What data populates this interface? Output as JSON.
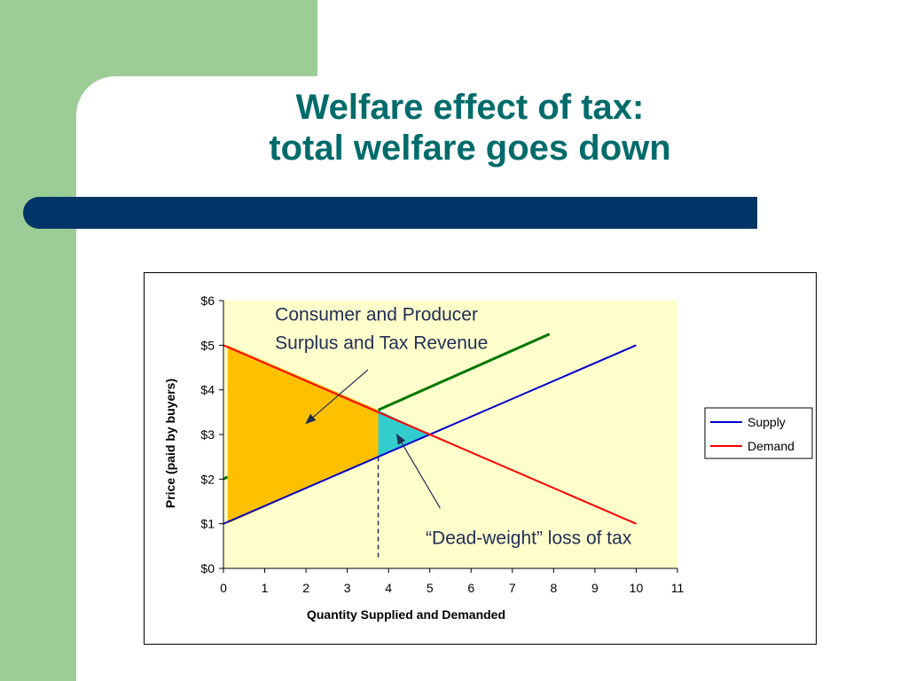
{
  "slide": {
    "title_line1": "Welfare effect of tax:",
    "title_line2": "total welfare goes down",
    "title_color": "#006b6b",
    "accent_green": "#9dcd96",
    "accent_navy": "#003567"
  },
  "chart_data": {
    "type": "line",
    "xlabel": "Quantity Supplied and Demanded",
    "ylabel": "Price (paid by buyers)",
    "xlim": [
      0,
      11
    ],
    "ylim": [
      0,
      6
    ],
    "x_ticks": [
      "0",
      "1",
      "2",
      "3",
      "4",
      "5",
      "6",
      "7",
      "8",
      "9",
      "10",
      "11"
    ],
    "y_ticks": [
      "$0",
      "$1",
      "$2",
      "$3",
      "$4",
      "$5",
      "$6"
    ],
    "plot_bg": "#ffffcc",
    "grid": false,
    "legend_position": "right",
    "series": [
      {
        "name": "Supply",
        "color": "#0000cc",
        "points": [
          [
            0,
            1
          ],
          [
            10,
            5
          ]
        ]
      },
      {
        "name": "Demand",
        "color": "#ff0000",
        "points": [
          [
            0,
            5
          ],
          [
            10,
            1
          ]
        ]
      }
    ],
    "extra_lines": [
      {
        "id": "supply-with-tax",
        "color": "#007700",
        "points": [
          [
            3.75,
            3.55
          ],
          [
            7.9,
            5.25
          ]
        ],
        "stub": [
          [
            0,
            2.0
          ],
          [
            0.1,
            2.05
          ]
        ]
      }
    ],
    "dashed_line": {
      "color": "#1f2d55",
      "points": [
        [
          3.75,
          0.25
        ],
        [
          3.75,
          2.5
        ]
      ]
    },
    "regions": [
      {
        "id": "surplus-and-revenue",
        "color": "#ffc000",
        "points": [
          [
            0.1,
            5
          ],
          [
            3.75,
            3.55
          ],
          [
            3.75,
            2.5
          ],
          [
            0.1,
            1
          ]
        ]
      },
      {
        "id": "deadweight-loss",
        "color": "#33cccc",
        "points": [
          [
            3.75,
            3.55
          ],
          [
            5,
            3
          ],
          [
            3.75,
            2.5
          ]
        ]
      }
    ],
    "annotations": [
      {
        "text_line1": "Consumer and Producer",
        "text_line2": "Surplus and Tax Revenue",
        "x": 1.25,
        "y": 5.55,
        "arrow_from": [
          3.5,
          4.45
        ],
        "arrow_to": [
          2.0,
          3.25
        ]
      },
      {
        "text": "“Dead-weight” loss of tax",
        "x": 4.9,
        "y": 0.55,
        "arrow_from": [
          5.25,
          1.35
        ],
        "arrow_to": [
          4.2,
          3.0
        ]
      }
    ]
  }
}
